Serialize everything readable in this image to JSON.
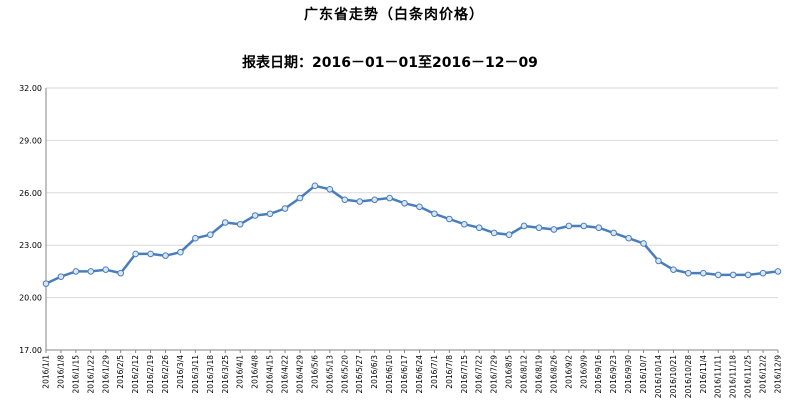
{
  "chart_data": {
    "type": "line",
    "title": "广东省走势（白条肉价格）",
    "subtitle": "报表日期：2016－01－01至2016－12－09",
    "xlabel": "",
    "ylabel": "",
    "ylim": [
      17.0,
      32.0
    ],
    "yticks": [
      "32.00",
      "29.00",
      "26.00",
      "23.00",
      "20.00",
      "17.00"
    ],
    "grid": "horizontal",
    "legend": "none",
    "colors": {
      "line": "#4a7ebb",
      "marker_fill": "#dbe7f5",
      "grid": "#d9d9d9",
      "axis": "#868686"
    },
    "categories": [
      "2016/1/1",
      "2016/1/8",
      "2016/1/15",
      "2016/1/22",
      "2016/1/29",
      "2016/2/5",
      "2016/2/12",
      "2016/2/19",
      "2016/2/26",
      "2016/3/4",
      "2016/3/11",
      "2016/3/18",
      "2016/3/25",
      "2016/4/1",
      "2016/4/8",
      "2016/4/15",
      "2016/4/22",
      "2016/4/29",
      "2016/5/6",
      "2016/5/13",
      "2016/5/20",
      "2016/5/27",
      "2016/6/3",
      "2016/6/10",
      "2016/6/17",
      "2016/6/24",
      "2016/7/1",
      "2016/7/8",
      "2016/7/15",
      "2016/7/22",
      "2016/7/29",
      "2016/8/5",
      "2016/8/12",
      "2016/8/19",
      "2016/8/26",
      "2016/9/2",
      "2016/9/9",
      "2016/9/16",
      "2016/9/23",
      "2016/9/30",
      "2016/10/7",
      "2016/10/14",
      "2016/10/21",
      "2016/10/28",
      "2016/11/4",
      "2016/11/11",
      "2016/11/18",
      "2016/11/25",
      "2016/12/2",
      "2016/12/9"
    ],
    "series": [
      {
        "values": [
          20.8,
          21.2,
          21.5,
          21.5,
          21.6,
          21.4,
          22.5,
          22.5,
          22.4,
          22.6,
          23.4,
          23.6,
          24.3,
          24.2,
          24.7,
          24.8,
          25.1,
          25.7,
          26.4,
          26.2,
          25.6,
          25.5,
          25.6,
          25.7,
          25.4,
          25.2,
          24.8,
          24.5,
          24.2,
          24.0,
          23.7,
          23.6,
          24.1,
          24.0,
          23.9,
          24.1,
          24.1,
          24.0,
          23.7,
          23.4,
          23.1,
          22.1,
          21.6,
          21.4,
          21.4,
          21.3,
          21.3,
          21.3,
          21.4,
          21.5
        ]
      }
    ]
  }
}
